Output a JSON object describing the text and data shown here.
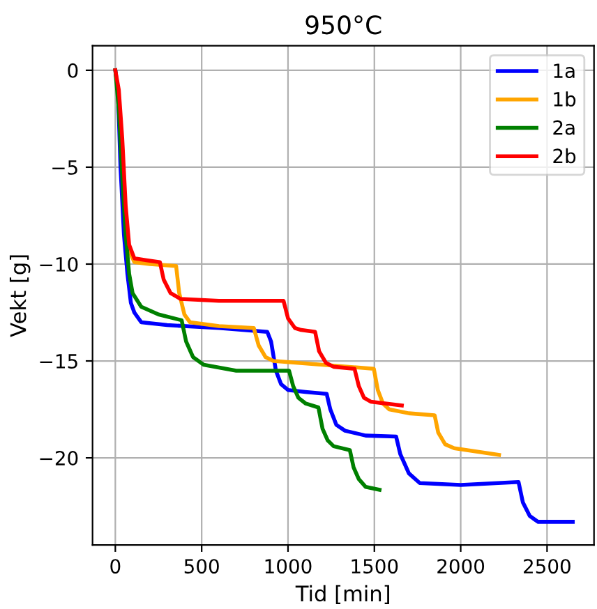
{
  "chart_data": {
    "type": "line",
    "title": "950°C",
    "xlabel": "Tid [min]",
    "ylabel": "Vekt [g]",
    "xlim": [
      -132,
      2772
    ],
    "ylim": [
      -24.5,
      1.27
    ],
    "xticks": [
      0,
      500,
      1000,
      1500,
      2000,
      2500
    ],
    "yticks": [
      {
        "value": 0,
        "label": "0"
      },
      {
        "value": -5,
        "label": "−5"
      },
      {
        "value": -10,
        "label": "−10"
      },
      {
        "value": -15,
        "label": "−15"
      },
      {
        "value": -20,
        "label": "−20"
      }
    ],
    "grid": true,
    "legend": "top right",
    "marker": "none",
    "line_style": "solid",
    "series": [
      {
        "name": "1a",
        "color": "#0000ff",
        "x": [
          0,
          15,
          30,
          50,
          70,
          90,
          110,
          150,
          300,
          600,
          880,
          902,
          930,
          960,
          1000,
          1100,
          1224,
          1245,
          1280,
          1330,
          1450,
          1626,
          1650,
          1700,
          1763,
          2000,
          2335,
          2360,
          2400,
          2447,
          2649
        ],
        "values": [
          0,
          -1,
          -5,
          -8.5,
          -10.5,
          -12,
          -12.5,
          -13,
          -13.15,
          -13.3,
          -13.5,
          -14,
          -15.5,
          -16.2,
          -16.5,
          -16.6,
          -16.7,
          -17.5,
          -18.3,
          -18.6,
          -18.85,
          -18.9,
          -19.8,
          -20.8,
          -21.3,
          -21.4,
          -21.25,
          -22.3,
          -23,
          -23.3,
          -23.3
        ]
      },
      {
        "name": "1b",
        "color": "#ffa500",
        "x": [
          60,
          80,
          110,
          200,
          352,
          370,
          400,
          432,
          600,
          802,
          830,
          870,
          915,
          1200,
          1497,
          1520,
          1550,
          1586,
          1700,
          1849,
          1870,
          1910,
          1962,
          2222
        ],
        "values": [
          -7.5,
          -9.3,
          -9.9,
          -10,
          -10.1,
          -11.5,
          -12.6,
          -13,
          -13.2,
          -13.3,
          -14.2,
          -14.8,
          -15.0,
          -15.2,
          -15.4,
          -16.5,
          -17.2,
          -17.5,
          -17.7,
          -17.8,
          -18.7,
          -19.3,
          -19.5,
          -19.85
        ]
      },
      {
        "name": "2a",
        "color": "#008000",
        "x": [
          0,
          20,
          40,
          60,
          80,
          100,
          150,
          250,
          384,
          410,
          450,
          512,
          700,
          1006,
          1030,
          1060,
          1103,
          1176,
          1200,
          1230,
          1264,
          1358,
          1380,
          1410,
          1450,
          1530
        ],
        "values": [
          0,
          -2,
          -5.5,
          -8.5,
          -10.5,
          -11.5,
          -12.2,
          -12.6,
          -12.9,
          -14,
          -14.8,
          -15.2,
          -15.5,
          -15.5,
          -16.3,
          -16.9,
          -17.2,
          -17.4,
          -18.5,
          -19.1,
          -19.4,
          -19.6,
          -20.5,
          -21.1,
          -21.5,
          -21.65
        ]
      },
      {
        "name": "2b",
        "color": "#ff0000",
        "x": [
          0,
          20,
          40,
          60,
          80,
          110,
          180,
          258,
          280,
          320,
          378,
          600,
          974,
          1000,
          1040,
          1076,
          1157,
          1180,
          1220,
          1264,
          1385,
          1410,
          1440,
          1479,
          1659
        ],
        "values": [
          0,
          -1,
          -3.5,
          -7,
          -9,
          -9.7,
          -9.8,
          -9.9,
          -10.8,
          -11.5,
          -11.8,
          -11.9,
          -11.9,
          -12.8,
          -13.3,
          -13.4,
          -13.5,
          -14.5,
          -15.1,
          -15.3,
          -15.4,
          -16.3,
          -16.9,
          -17.1,
          -17.3
        ]
      }
    ]
  }
}
